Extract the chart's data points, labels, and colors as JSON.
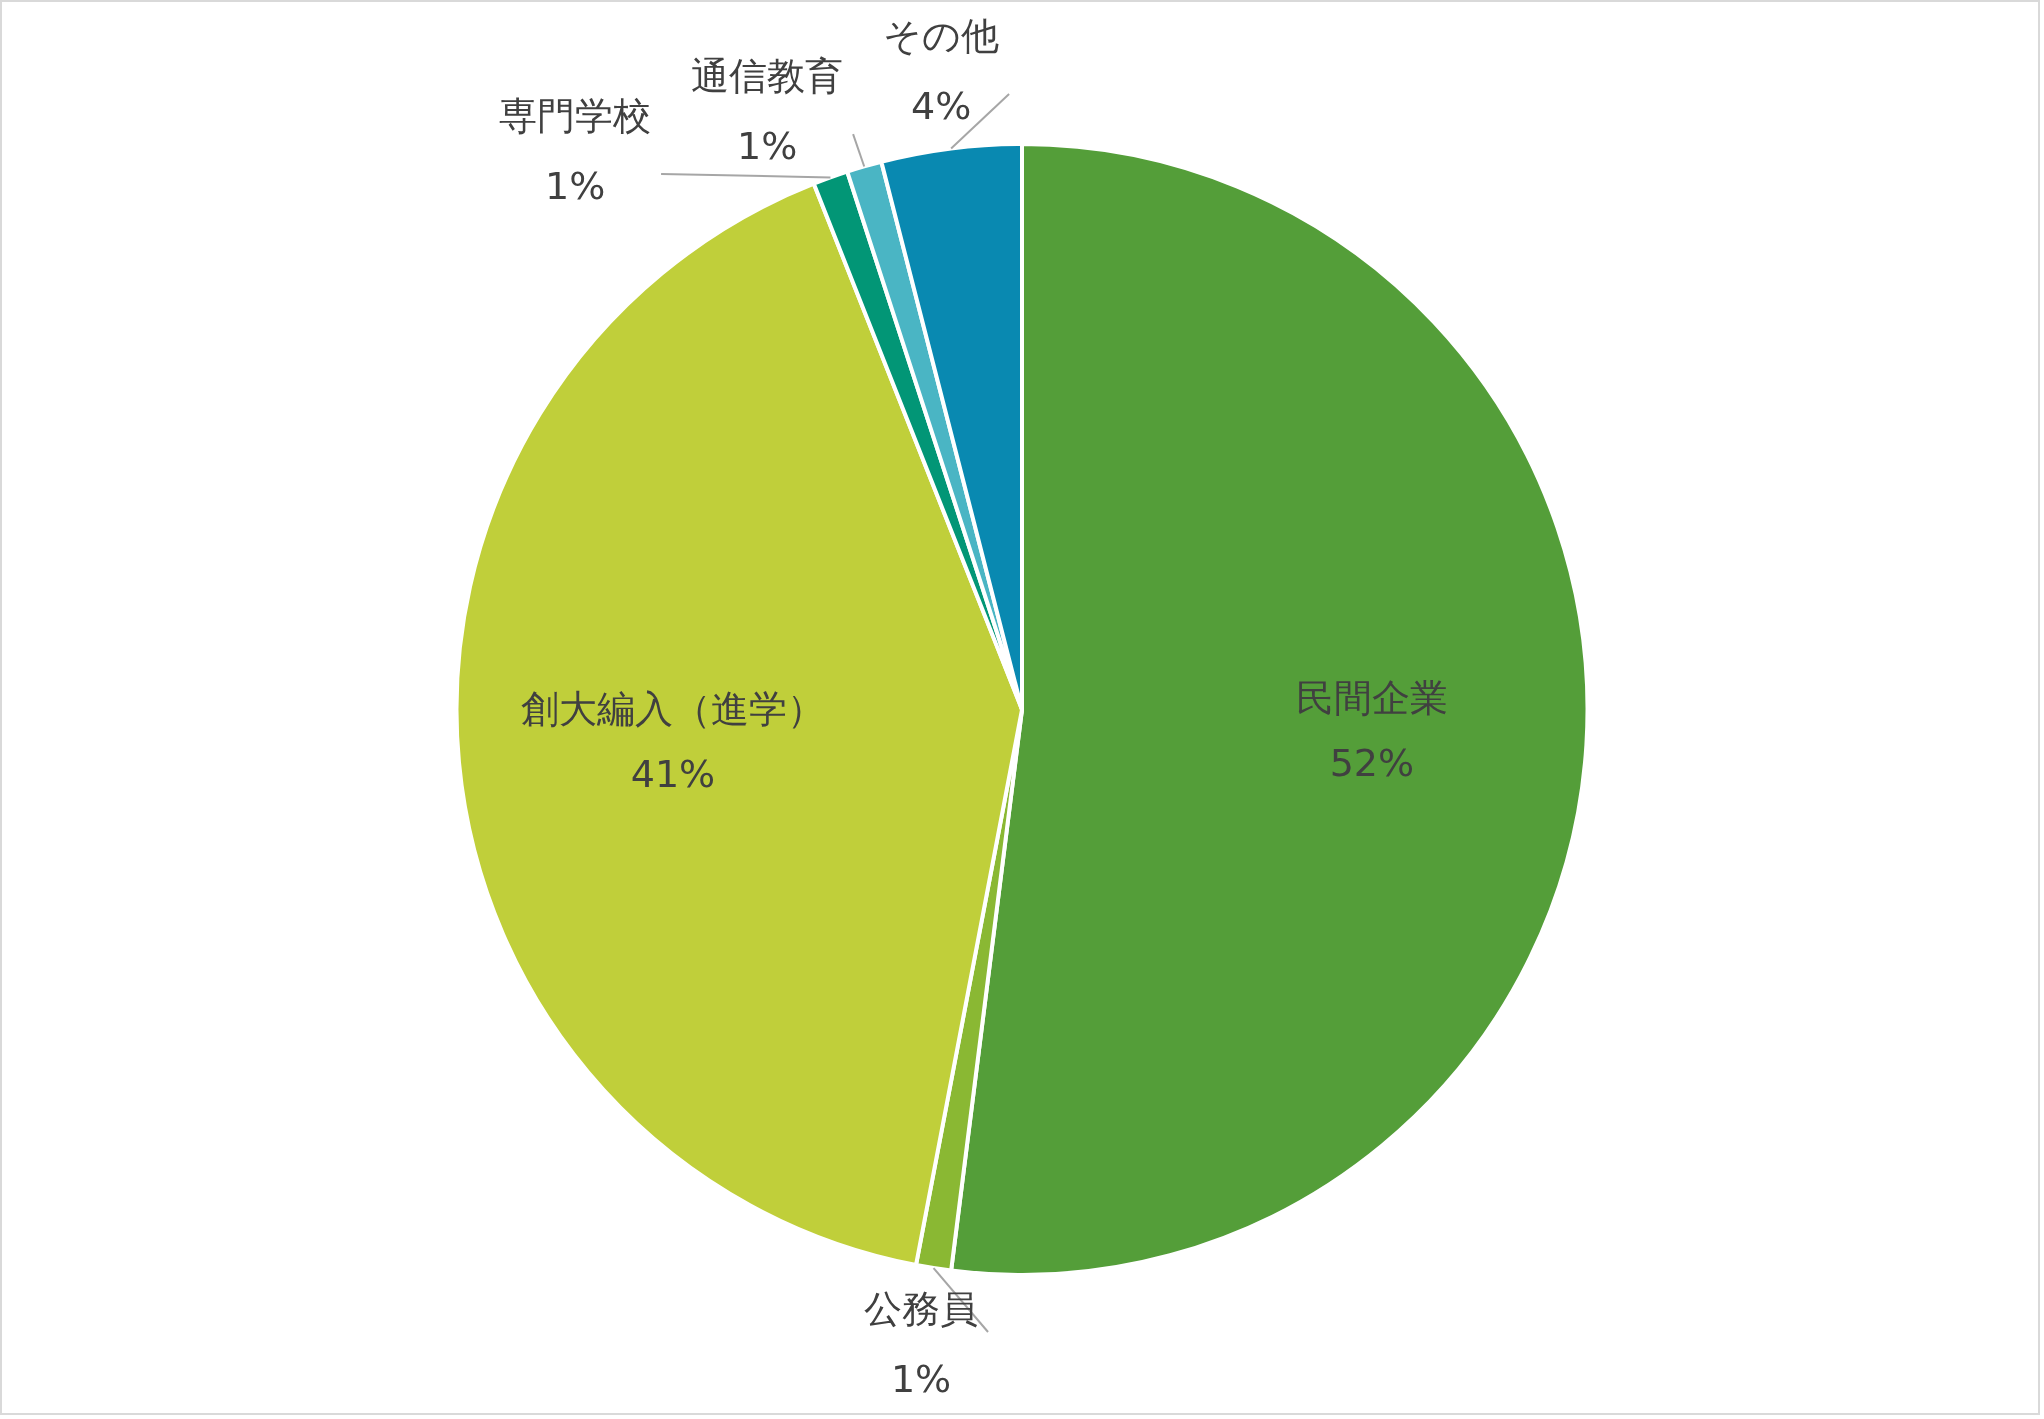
{
  "chart_data": {
    "type": "pie",
    "categories": [
      "民間企業",
      "公務員",
      "創大編入（進学）",
      "専門学校",
      "通信教育",
      "その他"
    ],
    "values": [
      52,
      1,
      41,
      1,
      1,
      4
    ],
    "colors": [
      "#549e39",
      "#8ab833",
      "#c0cf3a",
      "#029676",
      "#4ab5c4",
      "#0989b1"
    ],
    "value_labels": [
      "52%",
      "1%",
      "41%",
      "1%",
      "1%",
      "4%"
    ],
    "legend": false
  }
}
